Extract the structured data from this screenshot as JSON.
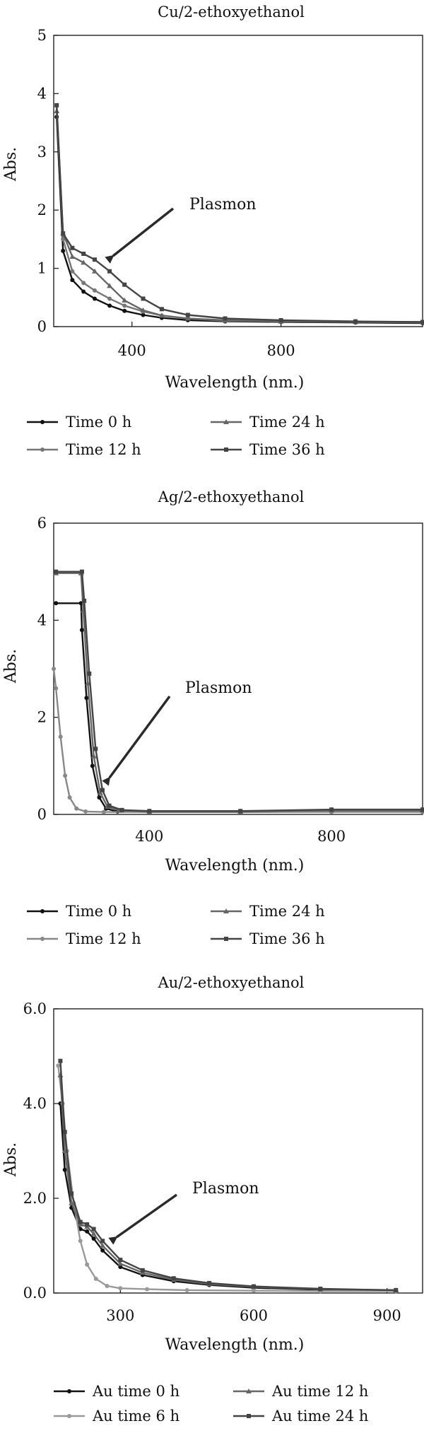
{
  "chart_data": [
    {
      "type": "line",
      "title": "Cu/2-ethoxyethanol",
      "xlabel": "Wavelength (nm.)",
      "ylabel": "Abs.",
      "xlim": [
        190,
        1180
      ],
      "ylim": [
        0,
        5
      ],
      "xticks": [
        400,
        800
      ],
      "xtick_labels": [
        "400",
        "800"
      ],
      "yticks": [
        0,
        1,
        2,
        3,
        4,
        5
      ],
      "ytick_labels": [
        "0",
        "1",
        "2",
        "3",
        "4",
        "5"
      ],
      "annotation": "Plasmon",
      "legend_position": "bottom",
      "series": [
        {
          "name": "Time 0 h",
          "color": "#111111",
          "marker": "circle",
          "x": [
            198,
            215,
            240,
            270,
            300,
            340,
            380,
            430,
            480,
            550,
            650,
            800,
            1000,
            1180
          ],
          "y": [
            3.6,
            1.3,
            0.8,
            0.6,
            0.48,
            0.36,
            0.27,
            0.2,
            0.15,
            0.11,
            0.09,
            0.08,
            0.07,
            0.06
          ]
        },
        {
          "name": "Time 12 h",
          "color": "#777777",
          "marker": "circle",
          "x": [
            198,
            215,
            240,
            270,
            300,
            340,
            380,
            430,
            480,
            550,
            650,
            800,
            1000,
            1180
          ],
          "y": [
            3.8,
            1.5,
            0.95,
            0.75,
            0.62,
            0.48,
            0.36,
            0.26,
            0.19,
            0.14,
            0.1,
            0.09,
            0.08,
            0.07
          ]
        },
        {
          "name": "Time 24 h",
          "color": "#666666",
          "marker": "triangle",
          "x": [
            198,
            215,
            240,
            270,
            300,
            340,
            380,
            430,
            480,
            550,
            650,
            800,
            1000,
            1180
          ],
          "y": [
            3.7,
            1.6,
            1.2,
            1.1,
            0.95,
            0.7,
            0.45,
            0.28,
            0.19,
            0.14,
            0.11,
            0.09,
            0.08,
            0.08
          ]
        },
        {
          "name": "Time 36 h",
          "color": "#444444",
          "marker": "square",
          "x": [
            198,
            215,
            240,
            270,
            300,
            340,
            380,
            430,
            480,
            550,
            650,
            800,
            1000,
            1180
          ],
          "y": [
            3.8,
            1.6,
            1.35,
            1.25,
            1.15,
            0.95,
            0.72,
            0.48,
            0.3,
            0.2,
            0.14,
            0.11,
            0.09,
            0.08
          ]
        }
      ]
    },
    {
      "type": "line",
      "title": "Ag/2-ethoxyethanol",
      "xlabel": "Wavelength (nm.)",
      "ylabel": "Abs.",
      "xlim": [
        190,
        1000
      ],
      "ylim": [
        0,
        6
      ],
      "xticks": [
        400,
        800
      ],
      "xtick_labels": [
        "400",
        "800"
      ],
      "yticks": [
        0,
        2,
        4,
        6
      ],
      "ytick_labels": [
        "0",
        "2",
        "4",
        "6"
      ],
      "annotation": "Plasmon",
      "legend_position": "bottom",
      "series": [
        {
          "name": "Time 0 h",
          "color": "#111111",
          "marker": "circle",
          "x": [
            195,
            250,
            252,
            262,
            275,
            290,
            305,
            330,
            400,
            600,
            800,
            1000
          ],
          "y": [
            4.35,
            4.35,
            3.8,
            2.4,
            1.0,
            0.35,
            0.12,
            0.06,
            0.05,
            0.05,
            0.06,
            0.06
          ]
        },
        {
          "name": "Time 12 h",
          "color": "#888888",
          "marker": "circle",
          "x": [
            190,
            195,
            205,
            215,
            225,
            240,
            260,
            300,
            400,
            600,
            800,
            1000
          ],
          "y": [
            3.0,
            2.6,
            1.6,
            0.8,
            0.35,
            0.12,
            0.06,
            0.05,
            0.05,
            0.05,
            0.05,
            0.05
          ]
        },
        {
          "name": "Time 24 h",
          "color": "#666666",
          "marker": "triangle",
          "x": [
            195,
            250,
            255,
            265,
            278,
            292,
            308,
            335,
            400,
            600,
            800,
            1000
          ],
          "y": [
            4.97,
            4.97,
            4.2,
            2.7,
            1.2,
            0.45,
            0.16,
            0.08,
            0.06,
            0.06,
            0.08,
            0.08
          ]
        },
        {
          "name": "Time 36 h",
          "color": "#444444",
          "marker": "square",
          "x": [
            195,
            252,
            257,
            268,
            282,
            297,
            312,
            340,
            400,
            600,
            800,
            1000
          ],
          "y": [
            5.0,
            5.0,
            4.4,
            2.9,
            1.35,
            0.5,
            0.18,
            0.09,
            0.07,
            0.07,
            0.1,
            0.1
          ]
        }
      ]
    },
    {
      "type": "line",
      "title": "Au/2-ethoxyethanol",
      "xlabel": "Wavelength (nm.)",
      "ylabel": "Abs.",
      "xlim": [
        150,
        980
      ],
      "ylim": [
        0,
        6
      ],
      "xticks": [
        300,
        600,
        900
      ],
      "xtick_labels": [
        "300",
        "600",
        "900"
      ],
      "yticks": [
        0,
        2,
        4,
        6
      ],
      "ytick_labels": [
        "0.0",
        "2.0",
        "4.0",
        "6.0"
      ],
      "annotation": "Plasmon",
      "legend_position": "bottom",
      "series": [
        {
          "name": "Au time 0 h",
          "color": "#111111",
          "marker": "circle",
          "x": [
            165,
            175,
            190,
            210,
            225,
            240,
            260,
            300,
            350,
            420,
            500,
            600,
            750,
            920
          ],
          "y": [
            4.0,
            2.6,
            1.8,
            1.35,
            1.3,
            1.15,
            0.9,
            0.55,
            0.38,
            0.25,
            0.17,
            0.11,
            0.07,
            0.05
          ]
        },
        {
          "name": "Au time 6 h",
          "color": "#999999",
          "marker": "circle",
          "x": [
            160,
            170,
            180,
            195,
            210,
            225,
            245,
            270,
            300,
            360,
            450,
            600,
            750,
            920
          ],
          "y": [
            4.8,
            4.0,
            3.0,
            1.9,
            1.1,
            0.6,
            0.3,
            0.15,
            0.1,
            0.08,
            0.06,
            0.05,
            0.04,
            0.04
          ]
        },
        {
          "name": "Au time 12 h",
          "color": "#666666",
          "marker": "triangle",
          "x": [
            165,
            175,
            190,
            210,
            225,
            240,
            260,
            300,
            350,
            420,
            500,
            600,
            750,
            920
          ],
          "y": [
            4.6,
            3.0,
            1.9,
            1.45,
            1.4,
            1.25,
            1.0,
            0.62,
            0.43,
            0.28,
            0.19,
            0.13,
            0.08,
            0.06
          ]
        },
        {
          "name": "Au time 24 h",
          "color": "#444444",
          "marker": "square",
          "x": [
            165,
            175,
            190,
            210,
            225,
            240,
            260,
            300,
            350,
            420,
            500,
            600,
            750,
            920
          ],
          "y": [
            4.9,
            3.4,
            2.1,
            1.5,
            1.45,
            1.35,
            1.1,
            0.7,
            0.48,
            0.31,
            0.21,
            0.14,
            0.09,
            0.06
          ]
        }
      ]
    }
  ]
}
